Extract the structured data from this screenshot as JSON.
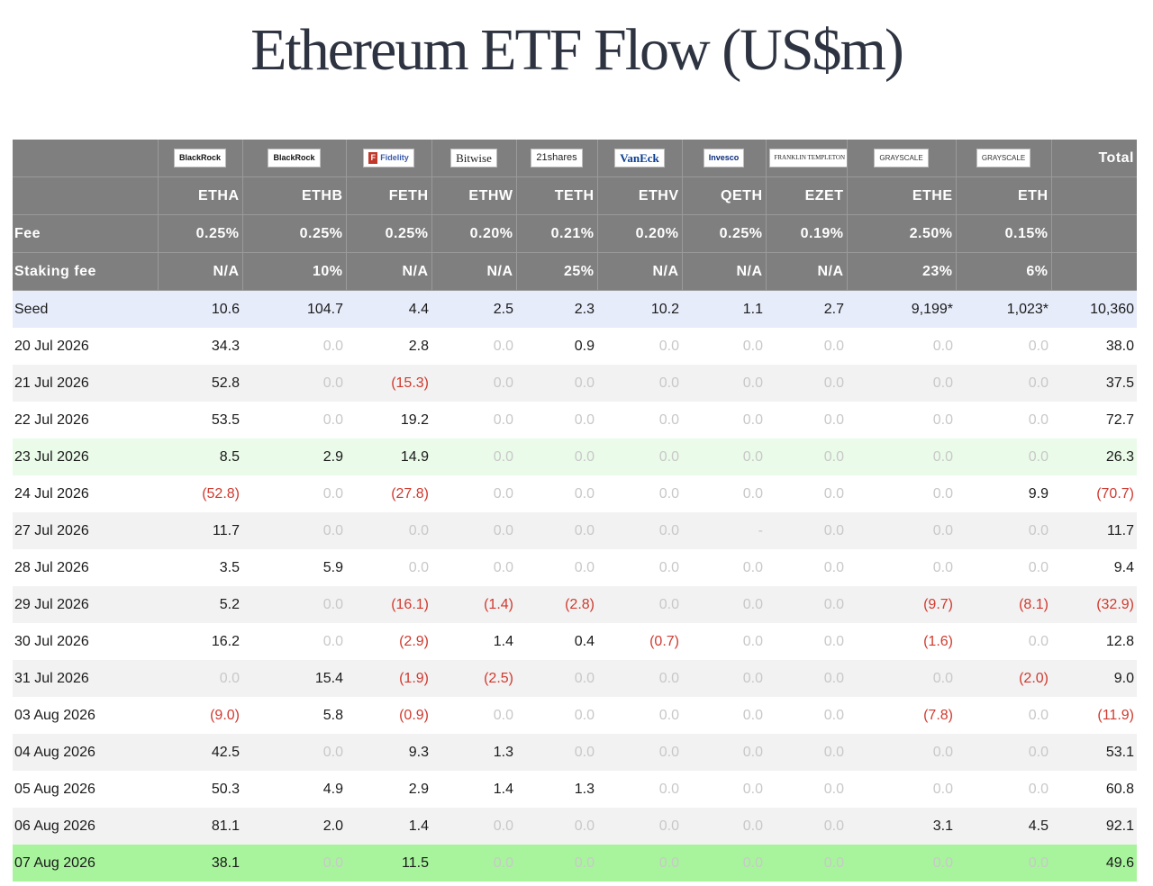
{
  "title": "Ethereum ETF Flow (US$m)",
  "colors": {
    "header_bg": "#7f7f7f",
    "seed_bg": "#e6ecfa",
    "highlight_green": "#a8f49d",
    "negative": "#d03a2f",
    "zero": "#c8c8c8"
  },
  "header": {
    "issuers": [
      {
        "logo": "BlackRock",
        "icon": "blackrock-logo"
      },
      {
        "logo": "BlackRock",
        "icon": "blackrock-logo"
      },
      {
        "logo": "Fidelity",
        "icon": "fidelity-logo"
      },
      {
        "logo": "Bitwise",
        "icon": "bitwise-logo"
      },
      {
        "logo": "21shares",
        "icon": "21shares-logo"
      },
      {
        "logo": "VanEck",
        "icon": "vaneck-logo"
      },
      {
        "logo": "Invesco",
        "icon": "invesco-logo"
      },
      {
        "logo": "FRANKLIN TEMPLETON",
        "icon": "franklin-templeton-logo"
      },
      {
        "logo": "GRAYSCALE",
        "icon": "grayscale-logo"
      },
      {
        "logo": "GRAYSCALE",
        "icon": "grayscale-logo"
      }
    ],
    "total_label": "Total",
    "tickers": [
      "ETHA",
      "ETHB",
      "FETH",
      "ETHW",
      "TETH",
      "ETHV",
      "QETH",
      "EZET",
      "ETHE",
      "ETH"
    ],
    "fee_label": "Fee",
    "fees": [
      "0.25%",
      "0.25%",
      "0.25%",
      "0.20%",
      "0.21%",
      "0.20%",
      "0.25%",
      "0.19%",
      "2.50%",
      "0.15%"
    ],
    "staking_label": "Staking fee",
    "staking": [
      "N/A",
      "10%",
      "N/A",
      "N/A",
      "25%",
      "N/A",
      "N/A",
      "N/A",
      "23%",
      "6%"
    ]
  },
  "rows": [
    {
      "label": "Seed",
      "values": [
        "10.6",
        "104.7",
        "4.4",
        "2.5",
        "2.3",
        "10.2",
        "1.1",
        "2.7",
        "9,199*",
        "1,023*"
      ],
      "total": "10,360"
    },
    {
      "label": "20 Jul 2026",
      "values": [
        "34.3",
        "0.0",
        "2.8",
        "0.0",
        "0.9",
        "0.0",
        "0.0",
        "0.0",
        "0.0",
        "0.0"
      ],
      "total": "38.0"
    },
    {
      "label": "21 Jul 2026",
      "values": [
        "52.8",
        "0.0",
        "(15.3)",
        "0.0",
        "0.0",
        "0.0",
        "0.0",
        "0.0",
        "0.0",
        "0.0"
      ],
      "total": "37.5"
    },
    {
      "label": "22 Jul 2026",
      "values": [
        "53.5",
        "0.0",
        "19.2",
        "0.0",
        "0.0",
        "0.0",
        "0.0",
        "0.0",
        "0.0",
        "0.0"
      ],
      "total": "72.7"
    },
    {
      "label": "23 Jul 2026",
      "values": [
        "8.5",
        "2.9",
        "14.9",
        "0.0",
        "0.0",
        "0.0",
        "0.0",
        "0.0",
        "0.0",
        "0.0"
      ],
      "total": "26.3"
    },
    {
      "label": "24 Jul 2026",
      "values": [
        "(52.8)",
        "0.0",
        "(27.8)",
        "0.0",
        "0.0",
        "0.0",
        "0.0",
        "0.0",
        "0.0",
        "9.9"
      ],
      "total": "(70.7)"
    },
    {
      "label": "27 Jul 2026",
      "values": [
        "11.7",
        "0.0",
        "0.0",
        "0.0",
        "0.0",
        "0.0",
        "-",
        "0.0",
        "0.0",
        "0.0"
      ],
      "total": "11.7"
    },
    {
      "label": "28 Jul 2026",
      "values": [
        "3.5",
        "5.9",
        "0.0",
        "0.0",
        "0.0",
        "0.0",
        "0.0",
        "0.0",
        "0.0",
        "0.0"
      ],
      "total": "9.4"
    },
    {
      "label": "29 Jul 2026",
      "values": [
        "5.2",
        "0.0",
        "(16.1)",
        "(1.4)",
        "(2.8)",
        "0.0",
        "0.0",
        "0.0",
        "(9.7)",
        "(8.1)"
      ],
      "total": "(32.9)"
    },
    {
      "label": "30 Jul 2026",
      "values": [
        "16.2",
        "0.0",
        "(2.9)",
        "1.4",
        "0.4",
        "(0.7)",
        "0.0",
        "0.0",
        "(1.6)",
        "0.0"
      ],
      "total": "12.8"
    },
    {
      "label": "31 Jul 2026",
      "values": [
        "0.0",
        "15.4",
        "(1.9)",
        "(2.5)",
        "0.0",
        "0.0",
        "0.0",
        "0.0",
        "0.0",
        "(2.0)"
      ],
      "total": "9.0"
    },
    {
      "label": "03 Aug 2026",
      "values": [
        "(9.0)",
        "5.8",
        "(0.9)",
        "0.0",
        "0.0",
        "0.0",
        "0.0",
        "0.0",
        "(7.8)",
        "0.0"
      ],
      "total": "(11.9)"
    },
    {
      "label": "04 Aug 2026",
      "values": [
        "42.5",
        "0.0",
        "9.3",
        "1.3",
        "0.0",
        "0.0",
        "0.0",
        "0.0",
        "0.0",
        "0.0"
      ],
      "total": "53.1"
    },
    {
      "label": "05 Aug 2026",
      "values": [
        "50.3",
        "4.9",
        "2.9",
        "1.4",
        "1.3",
        "0.0",
        "0.0",
        "0.0",
        "0.0",
        "0.0"
      ],
      "total": "60.8"
    },
    {
      "label": "06 Aug 2026",
      "values": [
        "81.1",
        "2.0",
        "1.4",
        "0.0",
        "0.0",
        "0.0",
        "0.0",
        "0.0",
        "3.1",
        "4.5"
      ],
      "total": "92.1"
    },
    {
      "label": "07 Aug 2026",
      "values": [
        "38.1",
        "0.0",
        "11.5",
        "0.0",
        "0.0",
        "0.0",
        "0.0",
        "0.0",
        "0.0",
        "0.0"
      ],
      "total": "49.6"
    }
  ]
}
